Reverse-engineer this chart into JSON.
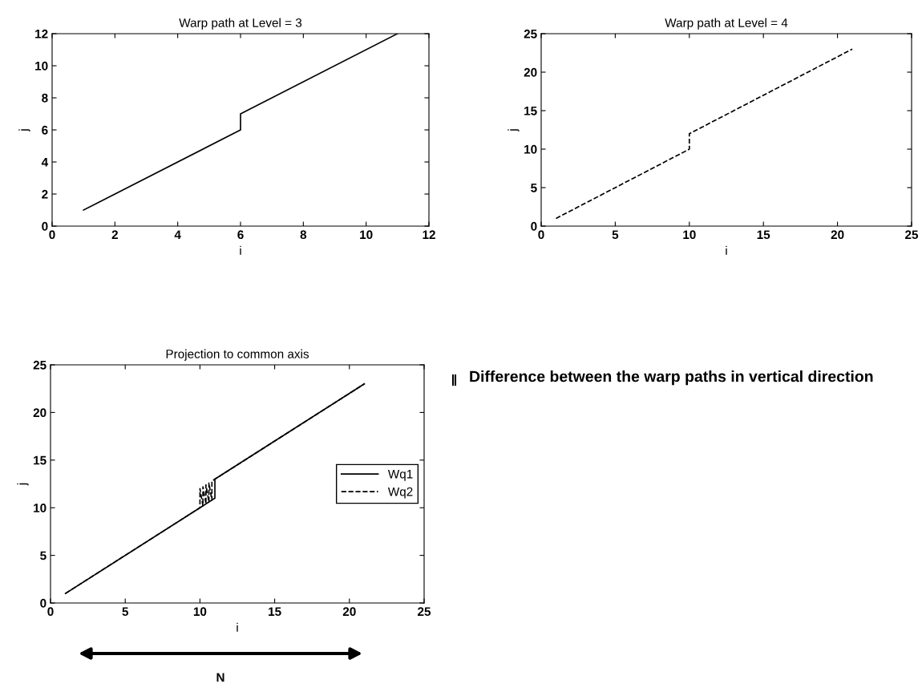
{
  "chart_data": [
    {
      "type": "line",
      "title": "Warp path at Level = 3",
      "xlabel": "i",
      "ylabel": "j",
      "xlim": [
        0,
        12
      ],
      "ylim": [
        0,
        12
      ],
      "xticks": [
        0,
        2,
        4,
        6,
        8,
        10,
        12
      ],
      "yticks": [
        0,
        2,
        4,
        6,
        8,
        10,
        12
      ],
      "grid": false,
      "legend": false,
      "line_style": "solid",
      "series": [
        {
          "color": "#000000",
          "x": [
            1,
            6,
            6,
            11
          ],
          "values": [
            1,
            6,
            7,
            12
          ]
        }
      ]
    },
    {
      "type": "line",
      "title": "Warp path at Level = 4",
      "xlabel": "i",
      "ylabel": "j",
      "xlim": [
        0,
        25
      ],
      "ylim": [
        0,
        25
      ],
      "xticks": [
        0,
        5,
        10,
        15,
        20,
        25
      ],
      "yticks": [
        0,
        5,
        10,
        15,
        20,
        25
      ],
      "grid": false,
      "legend": false,
      "line_style": "dashed",
      "series": [
        {
          "color": "#000000",
          "x": [
            1,
            10,
            10,
            21
          ],
          "values": [
            1,
            10,
            12,
            23
          ]
        }
      ]
    },
    {
      "type": "line",
      "title": "Projection to common axis",
      "xlabel": "i",
      "ylabel": "j",
      "xlim": [
        0,
        25
      ],
      "ylim": [
        0,
        25
      ],
      "xticks": [
        0,
        5,
        10,
        15,
        20,
        25
      ],
      "yticks": [
        0,
        5,
        10,
        15,
        20,
        25
      ],
      "grid": false,
      "legend": "right",
      "annotations": [
        "Difference between the warp paths in vertical direction",
        "N"
      ],
      "series": [
        {
          "name": "Wq1",
          "color": "#000000",
          "line_style": "solid",
          "x": [
            1,
            10,
            11,
            11,
            21
          ],
          "values": [
            1,
            10,
            11,
            13,
            23
          ]
        },
        {
          "name": "Wq2",
          "color": "#000000",
          "line_style": "dashed",
          "x": [
            1,
            10,
            10,
            10.2,
            10.2,
            10.4,
            10.4,
            10.6,
            10.6,
            10.8,
            10.8,
            11,
            21
          ],
          "values": [
            1,
            10,
            12,
            10.2,
            12.2,
            10.4,
            12.4,
            10.6,
            12.6,
            10.8,
            12.8,
            13,
            23
          ]
        }
      ]
    }
  ]
}
